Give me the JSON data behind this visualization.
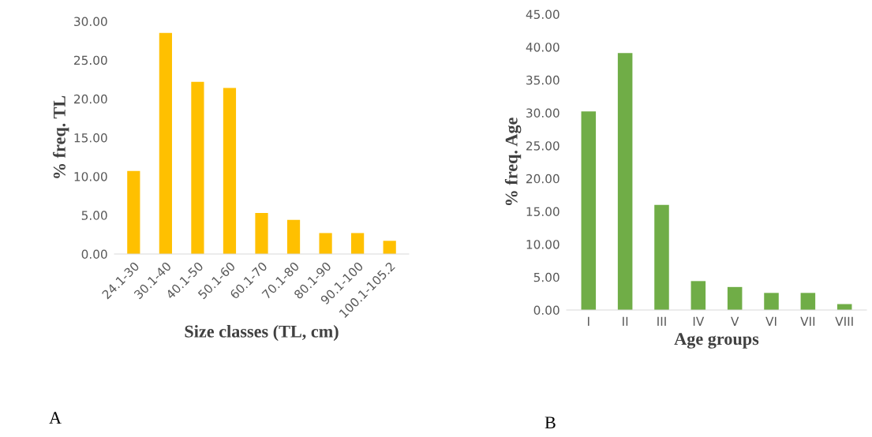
{
  "chart_data": [
    {
      "type": "bar",
      "xlabel": "Size classes (TL, cm)",
      "ylabel": "% freq. TL",
      "categories": [
        "24.1-30",
        "30.1-40",
        "40.1-50",
        "50.1-60",
        "60.1-70",
        "70.1-80",
        "80.1-90",
        "90.1-100",
        "100.1-105.2"
      ],
      "values": [
        10.7,
        28.5,
        22.2,
        21.4,
        5.3,
        4.4,
        2.7,
        2.7,
        1.7
      ],
      "color": "#ffc000",
      "ylim": [
        0,
        30
      ],
      "yticks": [
        {
          "value": 0,
          "label": "0.00"
        },
        {
          "value": 5,
          "label": "5.00"
        },
        {
          "value": 10,
          "label": "10.00"
        },
        {
          "value": 15,
          "label": "15.00"
        },
        {
          "value": 20,
          "label": "20.00"
        },
        {
          "value": 25,
          "label": "25.00"
        },
        {
          "value": 30,
          "label": "30.00"
        }
      ],
      "grid": false,
      "annotations": [
        "A"
      ]
    },
    {
      "type": "bar",
      "xlabel": "Age groups",
      "ylabel": "% freq. Age",
      "categories": [
        "I",
        "II",
        "III",
        "IV",
        "V",
        "VI",
        "VII",
        "VIII"
      ],
      "values": [
        30.2,
        39.1,
        16.0,
        4.4,
        3.5,
        2.6,
        2.6,
        0.9
      ],
      "color": "#70ad47",
      "ylim": [
        0,
        45
      ],
      "yticks": [
        {
          "value": 0,
          "label": "0.00"
        },
        {
          "value": 5,
          "label": "5.00"
        },
        {
          "value": 10,
          "label": "10.00"
        },
        {
          "value": 15,
          "label": "15.00"
        },
        {
          "value": 20,
          "label": "20.00"
        },
        {
          "value": 25,
          "label": "25.00"
        },
        {
          "value": 30,
          "label": "30.00"
        },
        {
          "value": 35,
          "label": "35.00"
        },
        {
          "value": 40,
          "label": "40.00"
        },
        {
          "value": 45,
          "label": "45.00"
        }
      ],
      "grid": false,
      "annotations": [
        "B"
      ]
    }
  ]
}
